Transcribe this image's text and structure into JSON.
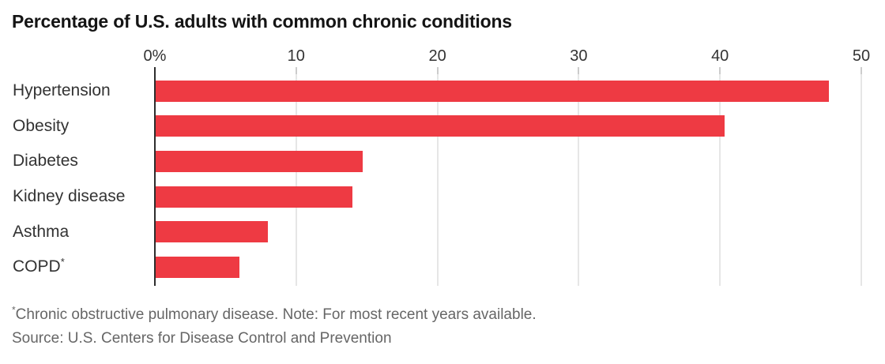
{
  "chart_data": {
    "type": "bar",
    "orientation": "horizontal",
    "title": "Percentage of U.S. adults with common chronic conditions",
    "categories": [
      "Hypertension",
      "Obesity",
      "Diabetes",
      "Kidney disease",
      "Asthma",
      "COPD*"
    ],
    "values": [
      47.7,
      40.3,
      14.7,
      14,
      8,
      6
    ],
    "xlabel": "",
    "ylabel": "",
    "xlim": [
      0,
      50
    ],
    "x_ticks": [
      {
        "value": 0,
        "label": "0%"
      },
      {
        "value": 10,
        "label": "10"
      },
      {
        "value": 20,
        "label": "20"
      },
      {
        "value": 30,
        "label": "30"
      },
      {
        "value": 40,
        "label": "40"
      },
      {
        "value": 50,
        "label": "50"
      }
    ],
    "grid": true,
    "legend": false,
    "footnote_marker": "*",
    "footnote_text": "Chronic obstructive pulmonary disease. Note: For most recent years available.",
    "source": "Source: U.S. Centers for Disease Control and Prevention"
  },
  "colors": {
    "bar": "#ee3a43",
    "axis_line": "#2d2d2d",
    "gridline": "#e6e6e6",
    "tick": "#cccccc",
    "title_text": "#141414",
    "label_text": "#333333",
    "footnote_text": "#666666"
  }
}
